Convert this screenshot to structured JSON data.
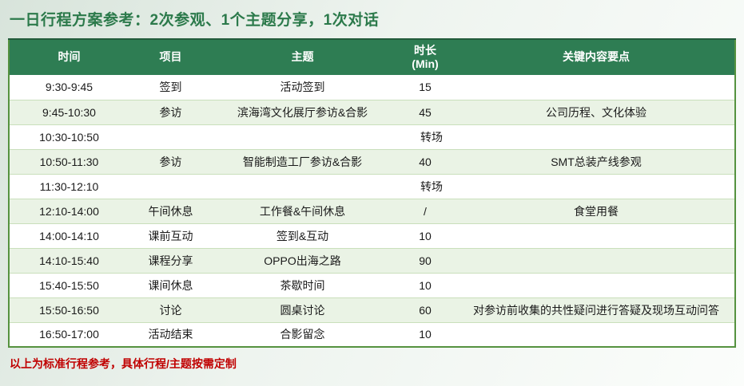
{
  "title": {
    "text": "一日行程方案参考：2次参观、1个主题分享，1次对话"
  },
  "table": {
    "headers": [
      "时间",
      "项目",
      "主题",
      "时长\n(Min)",
      "关键内容要点"
    ],
    "rows": [
      {
        "time": "9:30-9:45",
        "item": "签到",
        "theme": "活动签到",
        "duration": "15",
        "notes": ""
      },
      {
        "time": "9:45-10:30",
        "item": "参访",
        "theme": "滨海湾文化展厅参访&合影",
        "duration": "45",
        "notes": "公司历程、文化体验"
      },
      {
        "time": "10:30-10:50",
        "merged": "转场"
      },
      {
        "time": "10:50-11:30",
        "item": "参访",
        "theme": "智能制造工厂参访&合影",
        "duration": "40",
        "notes": "SMT总装产线参观"
      },
      {
        "time": "11:30-12:10",
        "merged": "转场"
      },
      {
        "time": "12:10-14:00",
        "item": "午间休息",
        "theme": "工作餐&午间休息",
        "duration": "/",
        "notes": "食堂用餐"
      },
      {
        "time": "14:00-14:10",
        "item": "课前互动",
        "theme": "签到&互动",
        "duration": "10",
        "notes": ""
      },
      {
        "time": "14:10-15:40",
        "item": "课程分享",
        "theme": "OPPO出海之路",
        "duration": "90",
        "notes": ""
      },
      {
        "time": "15:40-15:50",
        "item": "课间休息",
        "theme": "茶歇时间",
        "duration": "10",
        "notes": ""
      },
      {
        "time": "15:50-16:50",
        "item": "讨论",
        "theme": "圆桌讨论",
        "duration": "60",
        "notes": "对参访前收集的共性疑问进行答疑及现场互动问答"
      },
      {
        "time": "16:50-17:00",
        "item": "活动结束",
        "theme": "合影留念",
        "duration": "10",
        "notes": ""
      }
    ]
  },
  "footer": {
    "text": "以上为标准行程参考，具体行程/主题按需定制"
  },
  "colors": {
    "header_bg": "#2e7d53",
    "header_text": "#ffffff",
    "row_alt": "#eaf3e5",
    "divider": "#c9dfbb",
    "border": "#55923f",
    "title_color": "#2c7a4b",
    "footer_color": "#c00000",
    "grad_a": "#d8e4db",
    "grad_b": "#fbfdfb",
    "body_text": "#1a1a1a"
  }
}
